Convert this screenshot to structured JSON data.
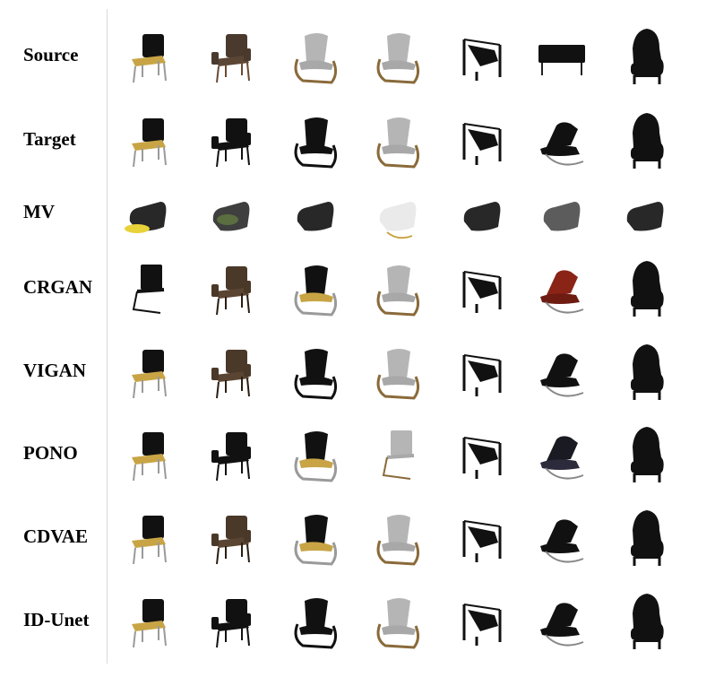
{
  "figure": {
    "rows": [
      {
        "label": "Source",
        "chairs": [
          "chair-black-wood",
          "chair-leather-wood",
          "chair-grey-bentwood",
          "chair-grey-bentwood",
          "chair-black-sling",
          "chair-black-bench",
          "chair-black-throne"
        ]
      },
      {
        "label": "Target",
        "chairs": [
          "chair-black-wood",
          "chair-black-arm",
          "chair-black-frame",
          "chair-grey-bentwood",
          "chair-black-sling",
          "chair-black-lounge",
          "chair-black-throne"
        ]
      },
      {
        "label": "MV",
        "chairs": [
          "chair-blob-yellow",
          "chair-blob-green",
          "chair-blob-partial",
          "chair-blob-white",
          "chair-blob-black",
          "chair-blob-grey",
          "chair-blob-black"
        ]
      },
      {
        "label": "CRGAN",
        "chairs": [
          "chair-black-cantilever",
          "chair-brown-arm",
          "chair-black-bentwood",
          "chair-grey-rocker",
          "chair-black-sling",
          "chair-red-lounge",
          "chair-black-throne"
        ]
      },
      {
        "label": "VIGAN",
        "chairs": [
          "chair-black-wood",
          "chair-brown-arm",
          "chair-black-frame",
          "chair-grey-rocker",
          "chair-black-sling",
          "chair-black-lounge",
          "chair-black-throne"
        ]
      },
      {
        "label": "PONO",
        "chairs": [
          "chair-black-wood",
          "chair-black-arm",
          "chair-black-bentwood",
          "chair-grey-cantilever",
          "chair-black-sling",
          "chair-navy-lounge",
          "chair-black-throne"
        ]
      },
      {
        "label": "CDVAE",
        "chairs": [
          "chair-black-wood",
          "chair-brown-arm",
          "chair-black-bentwood",
          "chair-grey-bentwood",
          "chair-black-sling",
          "chair-black-lounge",
          "chair-black-throne"
        ]
      },
      {
        "label": "ID-Unet",
        "chairs": [
          "chair-black-wood",
          "chair-black-arm",
          "chair-black-frame",
          "chair-grey-bentwood",
          "chair-black-sling",
          "chair-black-lounge",
          "chair-black-throne"
        ]
      }
    ]
  }
}
